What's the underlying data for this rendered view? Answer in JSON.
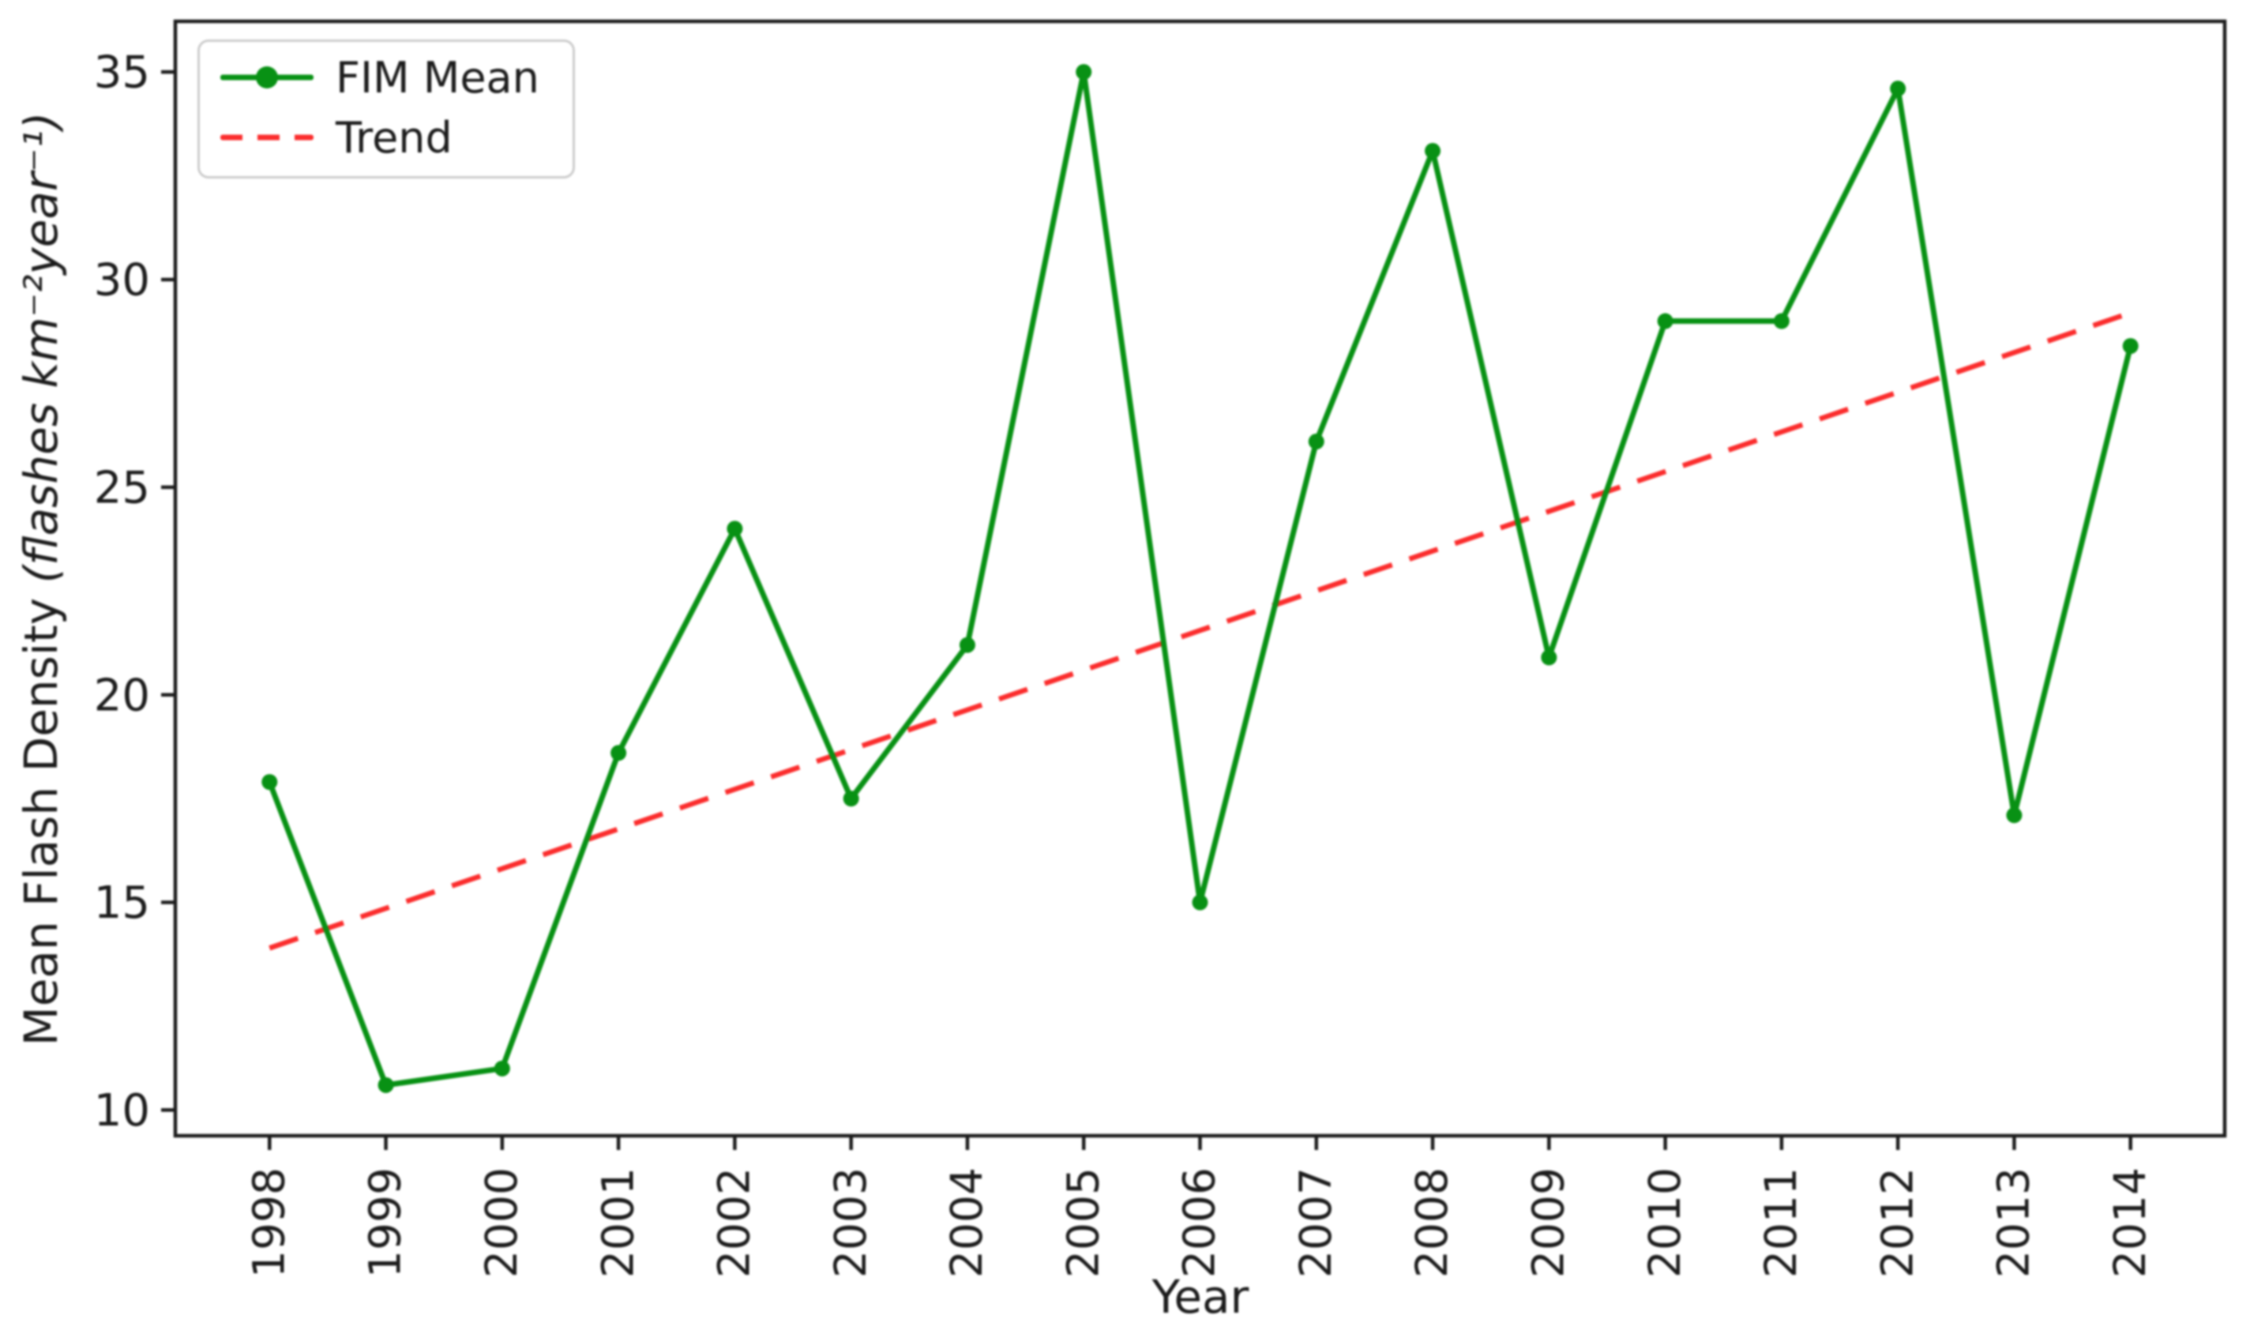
{
  "figure": {
    "xlabel": "Year",
    "ylabel_main": "Mean Flash Density ",
    "ylabel_units": "(flashes km⁻²year⁻¹)"
  },
  "legend": {
    "position": "upper-left",
    "items": [
      {
        "label": "FIM Mean",
        "icon": "green-solid-line-with-circle-marker",
        "color": "#089114"
      },
      {
        "label": "Trend",
        "icon": "red-dashed-line",
        "color": "#fb2d2d"
      }
    ]
  },
  "colors": {
    "series_green": "#089114",
    "trend_red": "#fb2d2d",
    "axis": "#1c1c1c",
    "text": "#1c1c1c",
    "legend_border": "#cccccc",
    "background": "#ffffff"
  },
  "chart_data": {
    "type": "line",
    "title": "",
    "xlabel": "Year",
    "ylabel": "Mean Flash Density (flashes km⁻²year⁻¹)",
    "grid": false,
    "legend_position": "upper left",
    "x": [
      1998,
      1999,
      2000,
      2001,
      2002,
      2003,
      2004,
      2005,
      2006,
      2007,
      2008,
      2009,
      2010,
      2011,
      2012,
      2013,
      2014
    ],
    "xticks": [
      1998,
      1999,
      2000,
      2001,
      2002,
      2003,
      2004,
      2005,
      2006,
      2007,
      2008,
      2009,
      2010,
      2011,
      2012,
      2013,
      2014
    ],
    "yticks": [
      10,
      15,
      20,
      25,
      30,
      35
    ],
    "xlim": [
      1997.19,
      2014.81
    ],
    "ylim": [
      9.38,
      36.22
    ],
    "series": [
      {
        "name": "FIM Mean",
        "color": "#089114",
        "line_style": "solid",
        "marker": "circle",
        "values": [
          17.9,
          10.6,
          11.0,
          18.6,
          24.0,
          17.5,
          21.2,
          35.0,
          15.0,
          26.1,
          33.1,
          20.9,
          29.0,
          29.0,
          34.6,
          17.1,
          28.4
        ]
      },
      {
        "name": "Trend",
        "color": "#fb2d2d",
        "line_style": "dashed",
        "marker": "none",
        "trend_line": {
          "x_start": 1998,
          "value_start": 13.9,
          "x_end": 2014,
          "value_end": 29.2
        }
      }
    ]
  }
}
